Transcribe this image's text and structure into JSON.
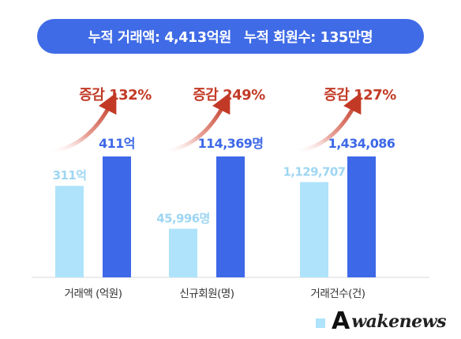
{
  "banner": {
    "part1": "누적 거래액: 4,413억원",
    "part2": "누적 회원수: 135만명"
  },
  "colors": {
    "banner": "#3f6be6",
    "bar_before": "#aee3fb",
    "bar_after": "#3d68e8",
    "label_before": "#9ed6f2",
    "label_after": "#3d68e8",
    "growth": "#c23a26",
    "axis_label": "#333333"
  },
  "chart_data": {
    "type": "bar",
    "categories": [
      "거래액 (억원)",
      "신규회원(명)",
      "거래건수(건)"
    ],
    "series": [
      {
        "values": [
          311,
          45996,
          1129707
        ],
        "labels": [
          "311억",
          "45,996명",
          "1,129,707"
        ]
      },
      {
        "values": [
          411,
          114369,
          1434086
        ],
        "labels": [
          "411억",
          "114,369명",
          "1,434,086"
        ]
      }
    ],
    "annotations": [
      "증감 132%",
      "증감 249%",
      "증감 127%"
    ]
  },
  "legend": {
    "icon": "legend-square-icon"
  },
  "watermark": {
    "mark": "A",
    "text": "wakenews"
  }
}
